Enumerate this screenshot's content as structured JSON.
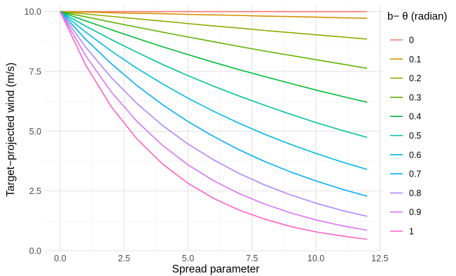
{
  "chart_data": {
    "type": "line",
    "xlabel": "Spread parameter",
    "ylabel": "Target−projected wind (m/s)",
    "xlim": [
      -0.6,
      12.6
    ],
    "ylim": [
      0,
      10.25
    ],
    "x_ticks": [
      0,
      2.5,
      5,
      7.5,
      10,
      12.5
    ],
    "x_tick_labels": [
      "0.0",
      "2.5",
      "5.0",
      "7.5",
      "10.0",
      "12.5"
    ],
    "y_ticks": [
      0,
      2.5,
      5,
      7.5,
      10
    ],
    "y_tick_labels": [
      "0.0",
      "2.5",
      "5.0",
      "7.5",
      "10.0"
    ],
    "grid": true,
    "legend": {
      "title": "b− θ (radian)",
      "position": "right"
    },
    "x": [
      0,
      1,
      2,
      3,
      4,
      5,
      6,
      7,
      8,
      9,
      10,
      11,
      12
    ],
    "series": [
      {
        "name": "0",
        "color": "#F8766D",
        "values": [
          10.0,
          10.0,
          10.0,
          10.0,
          10.0,
          10.0,
          10.0,
          10.0,
          10.0,
          10.0,
          10.0,
          10.0,
          10.0
        ]
      },
      {
        "name": "0.1",
        "color": "#D39200",
        "values": [
          10.0,
          9.98,
          9.95,
          9.93,
          9.91,
          9.88,
          9.86,
          9.84,
          9.81,
          9.79,
          9.77,
          9.74,
          9.72
        ]
      },
      {
        "name": "0.2",
        "color": "#93AA00",
        "values": [
          10.0,
          9.9,
          9.8,
          9.7,
          9.6,
          9.5,
          9.4,
          9.31,
          9.21,
          9.12,
          9.03,
          8.94,
          8.85
        ]
      },
      {
        "name": "0.3",
        "color": "#5EB300",
        "values": [
          10.0,
          9.78,
          9.56,
          9.35,
          9.14,
          8.94,
          8.74,
          8.54,
          8.35,
          8.17,
          7.99,
          7.81,
          7.63
        ]
      },
      {
        "name": "0.4",
        "color": "#00BA38",
        "values": [
          10.0,
          9.61,
          9.24,
          8.88,
          8.53,
          8.2,
          7.88,
          7.57,
          7.28,
          7.0,
          6.72,
          6.46,
          6.21
        ]
      },
      {
        "name": "0.5",
        "color": "#00C19F",
        "values": [
          10.0,
          9.39,
          8.83,
          8.3,
          7.79,
          7.32,
          6.88,
          6.47,
          6.08,
          5.71,
          5.36,
          5.04,
          4.74
        ]
      },
      {
        "name": "0.6",
        "color": "#00B9E3",
        "values": [
          10.0,
          9.14,
          8.35,
          7.63,
          6.98,
          6.38,
          5.83,
          5.33,
          4.87,
          4.45,
          4.07,
          3.72,
          3.4
        ]
      },
      {
        "name": "0.7",
        "color": "#00ADFA",
        "values": [
          10.0,
          8.84,
          7.82,
          6.91,
          6.11,
          5.4,
          4.78,
          4.22,
          3.73,
          3.3,
          2.92,
          2.58,
          2.28
        ]
      },
      {
        "name": "0.8",
        "color": "#AE87FF",
        "values": [
          10.0,
          8.51,
          7.24,
          6.16,
          5.24,
          4.46,
          3.8,
          3.23,
          2.75,
          2.34,
          1.99,
          1.69,
          1.44
        ]
      },
      {
        "name": "0.9",
        "color": "#DB72FB",
        "values": [
          10.0,
          8.15,
          6.64,
          5.41,
          4.41,
          3.59,
          2.93,
          2.39,
          1.95,
          1.59,
          1.29,
          1.05,
          0.86
        ]
      },
      {
        "name": "1",
        "color": "#FF61C3",
        "values": [
          10.0,
          7.76,
          6.02,
          4.68,
          3.63,
          2.82,
          2.19,
          1.7,
          1.32,
          1.02,
          0.79,
          0.62,
          0.48
        ]
      }
    ]
  }
}
